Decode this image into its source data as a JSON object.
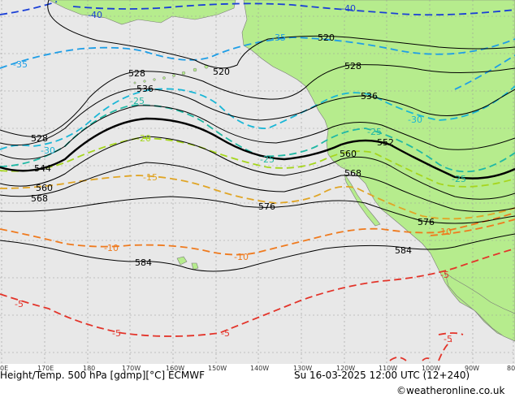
{
  "colors": {
    "ocean": "#e8e8e8",
    "land": "#b6ec8d",
    "grid": "#9a9a9a",
    "coast": "#7a7a7a",
    "height": "#000000",
    "t_minus40": "#1a3fd6",
    "t_minus35": "#1f9ee6",
    "t_minus30": "#19b6d6",
    "t_minus25": "#20b8a4",
    "t_minus20": "#a6d61e",
    "t_minus15": "#e0a526",
    "t_minus10": "#ef7a1e",
    "t_minus5": "#e3342a",
    "copyright": "#1c4fcf"
  },
  "height_labels": [
    "520",
    "520",
    "528",
    "528",
    "528",
    "536",
    "536",
    "544",
    "552",
    "560",
    "560",
    "568",
    "568",
    "576",
    "576",
    "584",
    "584"
  ],
  "temp_labels": [
    "-40",
    "-40",
    "-35",
    "-35",
    "-30",
    "-30",
    "-25",
    "-25",
    "-25",
    "-25",
    "-20",
    "-15",
    "-10",
    "-10",
    "-10",
    "-5",
    "-5",
    "-5",
    "-5",
    "-5"
  ],
  "axis_labels": [
    "0E",
    "170E",
    "180",
    "170W",
    "160W",
    "150W",
    "140W",
    "130W",
    "120W",
    "110W",
    "100W",
    "90W",
    "80"
  ],
  "footer": {
    "title": "Height/Temp. 500 hPa [gdmp][°C] ECMWF",
    "valid": "Su 16-03-2025 12:00 UTC (12+240)",
    "credit": "©weatheronline.co.uk"
  }
}
